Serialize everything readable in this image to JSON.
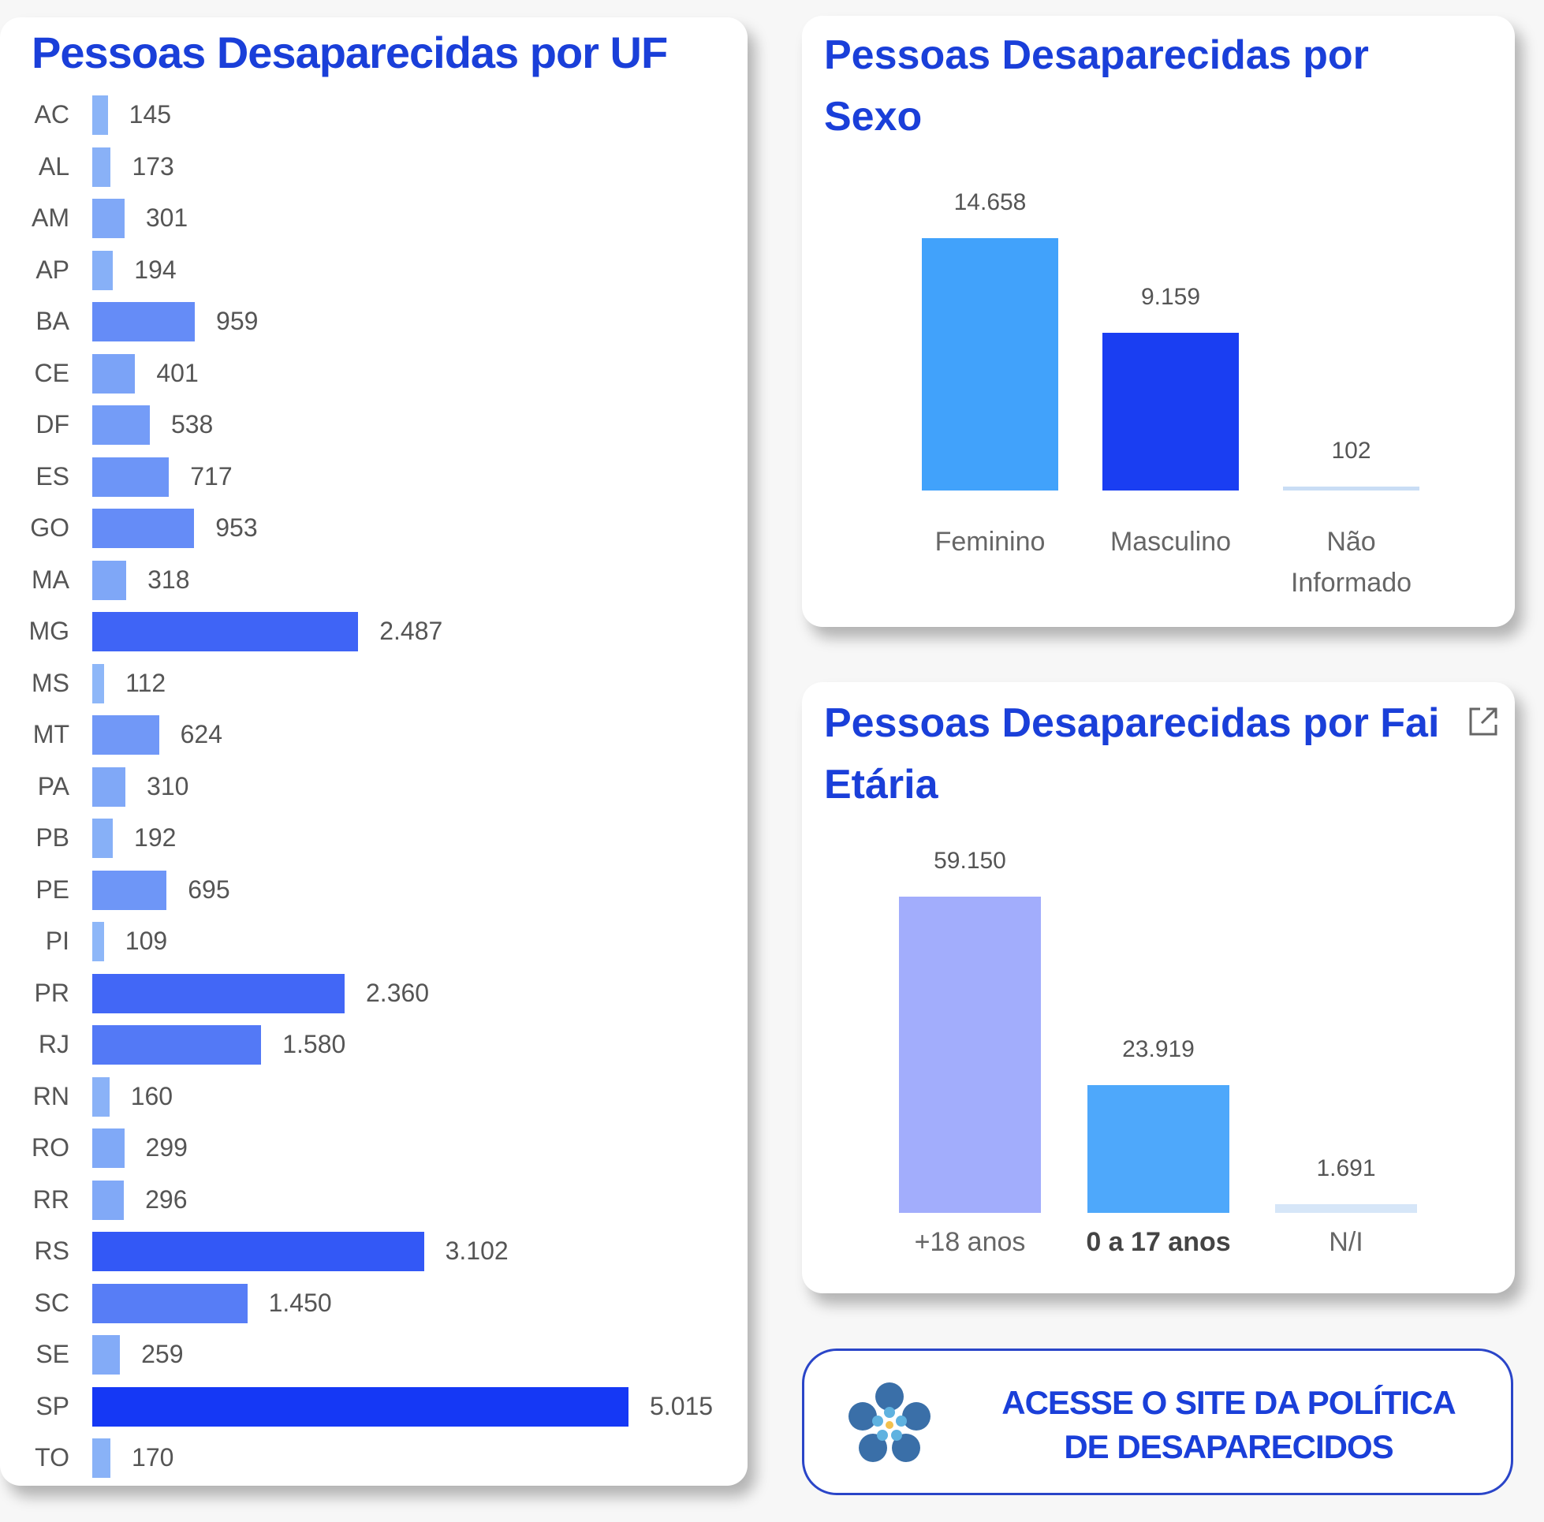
{
  "colors": {
    "title": "#1a3fd9",
    "uf_low": "#a3cdf8",
    "uf_high": "#1538f5"
  },
  "chart_data": [
    {
      "type": "bar",
      "orientation": "horizontal",
      "title": "Pessoas Desaparecidas por UF",
      "categories": [
        "AC",
        "AL",
        "AM",
        "AP",
        "BA",
        "CE",
        "DF",
        "ES",
        "GO",
        "MA",
        "MG",
        "MS",
        "MT",
        "PA",
        "PB",
        "PE",
        "PI",
        "PR",
        "RJ",
        "RN",
        "RO",
        "RR",
        "RS",
        "SC",
        "SE",
        "SP",
        "TO"
      ],
      "values": [
        145,
        173,
        301,
        194,
        959,
        401,
        538,
        717,
        953,
        318,
        2487,
        112,
        624,
        310,
        192,
        695,
        109,
        2360,
        1580,
        160,
        299,
        296,
        3102,
        1450,
        259,
        5015,
        170
      ],
      "value_labels": [
        "145",
        "173",
        "301",
        "194",
        "959",
        "401",
        "538",
        "717",
        "953",
        "318",
        "2.487",
        "112",
        "624",
        "310",
        "192",
        "695",
        "109",
        "2.360",
        "1.580",
        "160",
        "299",
        "296",
        "3.102",
        "1.450",
        "259",
        "5.015",
        "170"
      ],
      "color_scale": "gradient by value, light blue to dark blue"
    },
    {
      "type": "bar",
      "title_lines": [
        "Pessoas Desaparecidas por",
        "Sexo"
      ],
      "categories": [
        "Feminino",
        "Masculino",
        "Não Informado"
      ],
      "category_lines": [
        [
          "Feminino"
        ],
        [
          "Masculino"
        ],
        [
          "Não",
          "Informado"
        ]
      ],
      "values": [
        14658,
        9159,
        102
      ],
      "value_labels": [
        "14.658",
        "9.159",
        "102"
      ],
      "colors": [
        "#41a2fb",
        "#1a3ef2",
        "#c9ddf5"
      ]
    },
    {
      "type": "bar",
      "title_lines": [
        "Pessoas Desaparecidas por Fai",
        "Etária"
      ],
      "categories": [
        "+18 anos",
        "0 a 17 anos",
        "N/I"
      ],
      "values": [
        59150,
        23919,
        1691
      ],
      "value_labels": [
        "59.150",
        "23.919",
        "1.691"
      ],
      "colors": [
        "#a2adfc",
        "#4ea8fb",
        "#d6e6f8"
      ],
      "bold_category": "0 a 17 anos"
    }
  ],
  "link_button": {
    "lines": [
      "ACESSE O SITE DA POLÍTICA",
      "DE DESAPARECIDOS"
    ],
    "icon": "flower-logo-icon"
  },
  "expand_icon": "focus-mode-icon"
}
